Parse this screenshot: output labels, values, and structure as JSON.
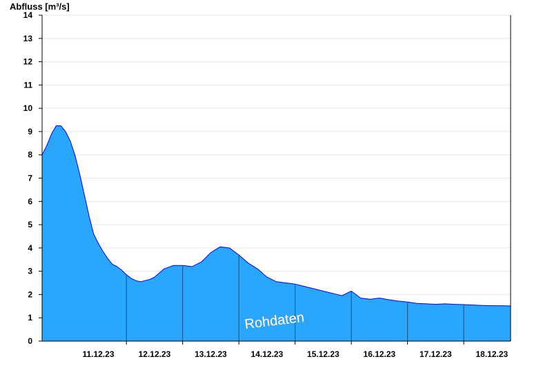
{
  "chart_data": {
    "type": "area",
    "title": "",
    "ylabel": "Abfluss [m³/s]",
    "xlabel": "",
    "ylim": [
      0,
      14
    ],
    "yticks": [
      "0",
      "1",
      "2",
      "3",
      "4",
      "5",
      "6",
      "7",
      "8",
      "9",
      "10",
      "11",
      "12",
      "13",
      "14"
    ],
    "xlim": [
      "10.12.23 12:00",
      "18.12.23 20:00"
    ],
    "xticks": [
      "11.12.23",
      "12.12.23",
      "13.12.23",
      "14.12.23",
      "15.12.23",
      "16.12.23",
      "17.12.23",
      "18.12.23"
    ],
    "grid": true,
    "annotation": "Rohdaten",
    "fill_color": "#29a7ff",
    "line_color": "#0000ff",
    "series": [
      {
        "x": [
          "10.12.23 12:00",
          "10.12.23 14:00",
          "10.12.23 16:00",
          "10.12.23 18:00",
          "10.12.23 20:00",
          "10.12.23 22:00",
          "11.12.23 00:00",
          "11.12.23 02:00",
          "11.12.23 04:00",
          "11.12.23 06:00",
          "11.12.23 08:00",
          "11.12.23 10:00",
          "11.12.23 12:00",
          "11.12.23 14:00",
          "11.12.23 16:00",
          "11.12.23 18:00",
          "11.12.23 20:00",
          "11.12.23 22:00",
          "12.12.23 00:00",
          "12.12.23 02:00",
          "12.12.23 04:00",
          "12.12.23 06:00",
          "12.12.23 08:00",
          "12.12.23 10:00",
          "12.12.23 12:00",
          "12.12.23 16:00",
          "12.12.23 20:00",
          "13.12.23 00:00",
          "13.12.23 04:00",
          "13.12.23 08:00",
          "13.12.23 12:00",
          "13.12.23 16:00",
          "13.12.23 20:00",
          "14.12.23 00:00",
          "14.12.23 04:00",
          "14.12.23 08:00",
          "14.12.23 12:00",
          "14.12.23 16:00",
          "14.12.23 20:00",
          "15.12.23 00:00",
          "15.12.23 04:00",
          "15.12.23 08:00",
          "15.12.23 12:00",
          "15.12.23 16:00",
          "15.12.23 20:00",
          "16.12.23 00:00",
          "16.12.23 04:00",
          "16.12.23 08:00",
          "16.12.23 12:00",
          "16.12.23 16:00",
          "16.12.23 20:00",
          "17.12.23 00:00",
          "17.12.23 04:00",
          "17.12.23 08:00",
          "17.12.23 12:00",
          "17.12.23 16:00",
          "17.12.23 20:00",
          "18.12.23 00:00",
          "18.12.23 04:00",
          "18.12.23 08:00",
          "18.12.23 12:00",
          "18.12.23 16:00",
          "18.12.23 20:00"
        ],
        "y": [
          8.0,
          8.4,
          8.9,
          9.25,
          9.25,
          9.0,
          8.6,
          8.0,
          7.2,
          6.3,
          5.4,
          4.6,
          4.2,
          3.85,
          3.55,
          3.3,
          3.2,
          3.05,
          2.85,
          2.7,
          2.6,
          2.55,
          2.6,
          2.65,
          2.75,
          3.1,
          3.25,
          3.25,
          3.2,
          3.4,
          3.8,
          4.05,
          4.0,
          3.7,
          3.35,
          3.1,
          2.75,
          2.55,
          2.5,
          2.45,
          2.35,
          2.25,
          2.15,
          2.05,
          1.95,
          2.15,
          1.85,
          1.8,
          1.85,
          1.78,
          1.72,
          1.68,
          1.62,
          1.6,
          1.58,
          1.6,
          1.58,
          1.57,
          1.55,
          1.53,
          1.52,
          1.52,
          1.51
        ]
      }
    ]
  }
}
